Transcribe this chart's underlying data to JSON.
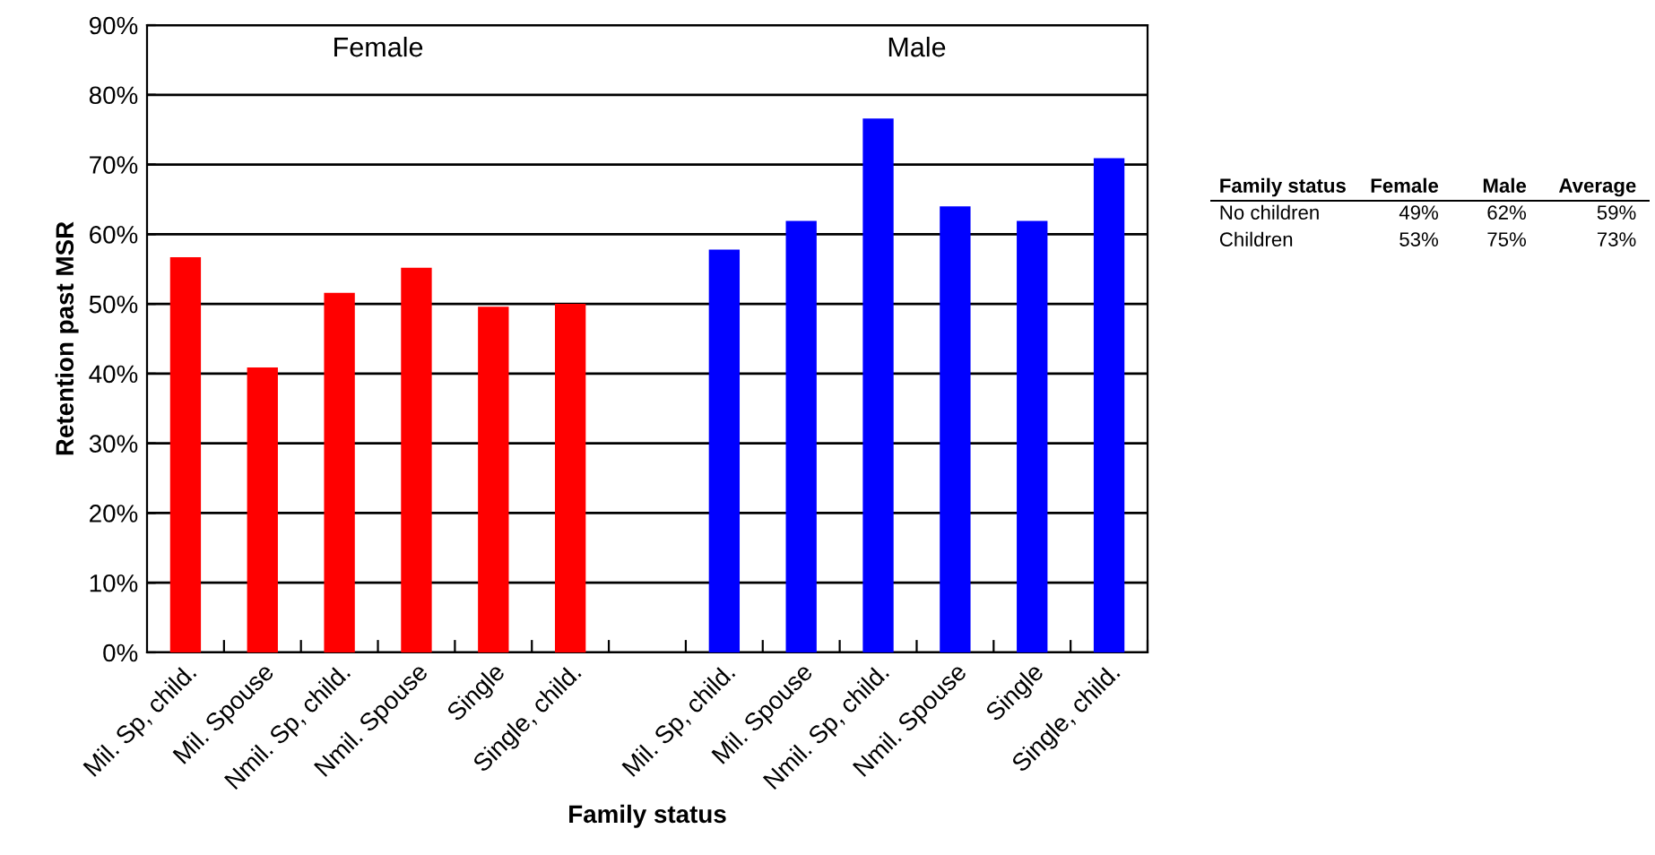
{
  "chart_data": [
    {
      "type": "bar",
      "xlabel": "Family status",
      "ylabel": "Retention past MSR",
      "categories": [
        "Mil. Sp, child.",
        "Mil. Spouse",
        "Nmil. Sp, child.",
        "Nmil. Spouse",
        "Single",
        "Single, child.",
        null,
        "Mil. Sp, child.",
        "Mil. Spouse",
        "Nmil. Sp, child.",
        "Nmil. Spouse",
        "Single",
        "Single, child."
      ],
      "series": [
        {
          "color": "#ff0000",
          "values": [
            56.7,
            40.9,
            51.6,
            55.2,
            49.6,
            50.0,
            null,
            null,
            null,
            null,
            null,
            null,
            null
          ]
        },
        {
          "color": "#0000ff",
          "values": [
            null,
            null,
            null,
            null,
            null,
            null,
            null,
            57.8,
            61.9,
            76.6,
            64.0,
            61.9,
            70.9
          ]
        }
      ],
      "annotations": [
        "Female",
        "Male"
      ],
      "ylim": [
        0,
        90
      ],
      "yticks": [
        {
          "value": 0,
          "label": "0%"
        },
        {
          "value": 10,
          "label": "10%"
        },
        {
          "value": 20,
          "label": "20%"
        },
        {
          "value": 30,
          "label": "30%"
        },
        {
          "value": 40,
          "label": "40%"
        },
        {
          "value": 50,
          "label": "50%"
        },
        {
          "value": 60,
          "label": "60%"
        },
        {
          "value": 70,
          "label": "70%"
        },
        {
          "value": 80,
          "label": "80%"
        },
        {
          "value": 90,
          "label": "90%"
        }
      ],
      "grid": "y",
      "legend": false
    },
    {
      "type": "other",
      "annotations": [
        "Family status",
        "Female",
        "Male",
        "Average",
        "No children",
        "49%",
        "62%",
        "59%",
        "Children",
        "53%",
        "75%",
        "73%"
      ]
    }
  ]
}
